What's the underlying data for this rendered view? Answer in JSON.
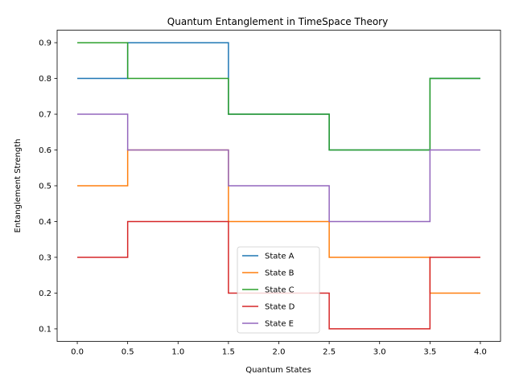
{
  "chart_data": {
    "type": "line",
    "step": "mid",
    "title": "Quantum Entanglement in TimeSpace Theory",
    "xlabel": "Quantum States",
    "ylabel": "Entanglement Strength",
    "x": [
      0,
      1,
      2,
      3,
      4
    ],
    "xticks": [
      "0.0",
      "0.5",
      "1.0",
      "1.5",
      "2.0",
      "2.5",
      "3.0",
      "3.5",
      "4.0"
    ],
    "xtick_values": [
      0,
      0.5,
      1,
      1.5,
      2,
      2.5,
      3,
      3.5,
      4
    ],
    "yticks": [
      "0.1",
      "0.2",
      "0.3",
      "0.4",
      "0.5",
      "0.6",
      "0.7",
      "0.8",
      "0.9"
    ],
    "ytick_values": [
      0.1,
      0.2,
      0.3,
      0.4,
      0.5,
      0.6,
      0.7,
      0.8,
      0.9
    ],
    "xlim": [
      -0.2,
      4.2
    ],
    "ylim": [
      0.065,
      0.935
    ],
    "grid": false,
    "legend": "lower-center",
    "series": [
      {
        "name": "State A",
        "color": "#1f77b4",
        "values": [
          0.8,
          0.9,
          0.7,
          0.6,
          0.8
        ]
      },
      {
        "name": "State B",
        "color": "#ff7f0e",
        "values": [
          0.5,
          0.6,
          0.4,
          0.3,
          0.2
        ]
      },
      {
        "name": "State C",
        "color": "#2ca02c",
        "values": [
          0.9,
          0.8,
          0.7,
          0.6,
          0.8
        ]
      },
      {
        "name": "State D",
        "color": "#d62728",
        "values": [
          0.3,
          0.4,
          0.2,
          0.1,
          0.3
        ]
      },
      {
        "name": "State E",
        "color": "#9467bd",
        "values": [
          0.7,
          0.6,
          0.5,
          0.4,
          0.6
        ]
      }
    ]
  }
}
